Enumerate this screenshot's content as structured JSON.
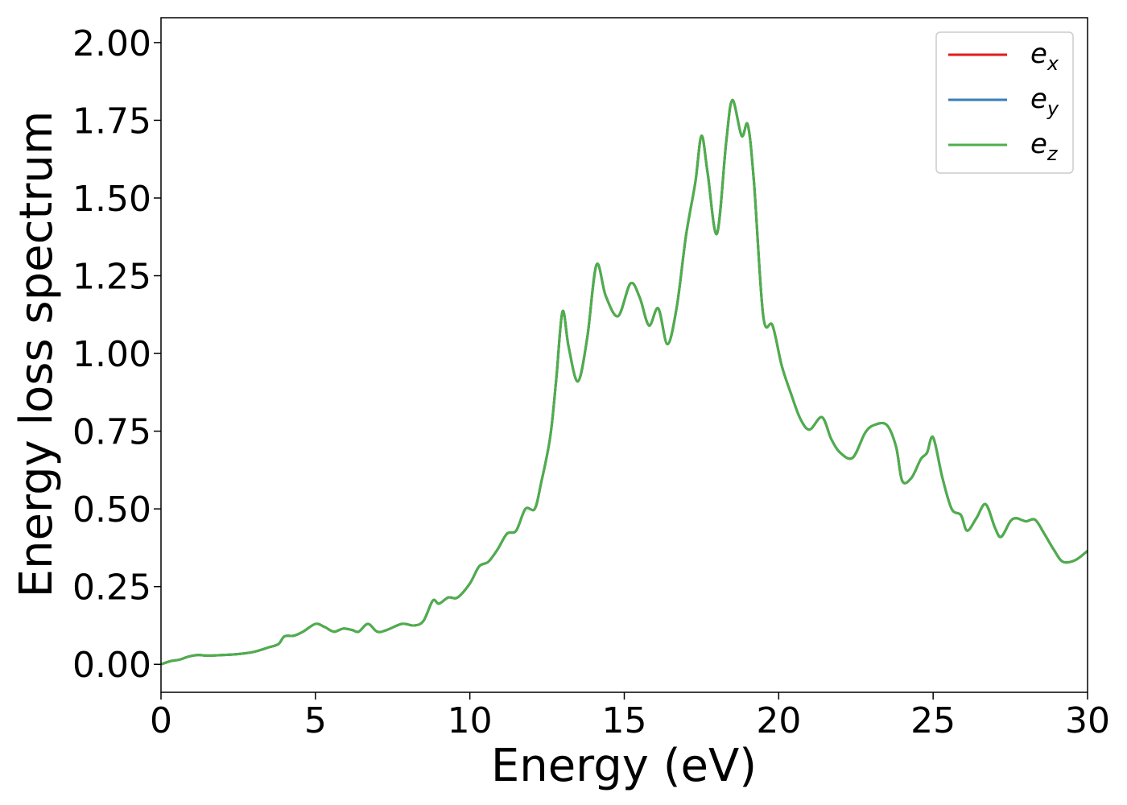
{
  "chart_data": {
    "type": "line",
    "title": "",
    "xlabel": "Energy (eV)",
    "ylabel": "Energy loss spectrum",
    "xlim": [
      0,
      30
    ],
    "ylim": [
      -0.09,
      2.08
    ],
    "xticks": [
      0,
      5,
      10,
      15,
      20,
      25,
      30
    ],
    "xtick_labels": [
      "0",
      "5",
      "10",
      "15",
      "20",
      "25",
      "30"
    ],
    "yticks": [
      0.0,
      0.25,
      0.5,
      0.75,
      1.0,
      1.25,
      1.5,
      1.75,
      2.0
    ],
    "ytick_labels": [
      "0.00",
      "0.25",
      "0.50",
      "0.75",
      "1.00",
      "1.25",
      "1.50",
      "1.75",
      "2.00"
    ],
    "grid": false,
    "legend_position": "top-right",
    "x": [
      0,
      0.3,
      0.6,
      0.9,
      1.2,
      1.5,
      2.0,
      2.5,
      3.0,
      3.5,
      3.8,
      4.0,
      4.3,
      4.6,
      5.0,
      5.3,
      5.6,
      5.9,
      6.2,
      6.4,
      6.7,
      7.0,
      7.3,
      7.8,
      8.2,
      8.5,
      8.8,
      9.0,
      9.3,
      9.6,
      10.0,
      10.3,
      10.6,
      10.9,
      11.2,
      11.5,
      11.8,
      12.1,
      12.3,
      12.6,
      12.8,
      13.0,
      13.2,
      13.5,
      13.8,
      14.1,
      14.4,
      14.8,
      15.2,
      15.5,
      15.8,
      16.1,
      16.4,
      16.7,
      17.0,
      17.3,
      17.5,
      17.7,
      18.0,
      18.3,
      18.5,
      18.8,
      19.0,
      19.2,
      19.5,
      19.8,
      20.1,
      20.4,
      20.7,
      21.0,
      21.4,
      21.7,
      22.0,
      22.4,
      22.8,
      23.1,
      23.5,
      23.8,
      24.0,
      24.3,
      24.6,
      24.8,
      25.0,
      25.3,
      25.6,
      25.9,
      26.1,
      26.4,
      26.7,
      27.0,
      27.2,
      27.5,
      27.7,
      28.0,
      28.3,
      28.6,
      28.9,
      29.2,
      29.6,
      30.0
    ],
    "series": [
      {
        "name": "e_x",
        "color": "#e41a1c",
        "values": [
          0.0,
          0.01,
          0.015,
          0.025,
          0.03,
          0.028,
          0.03,
          0.033,
          0.04,
          0.055,
          0.065,
          0.09,
          0.092,
          0.105,
          0.13,
          0.12,
          0.105,
          0.115,
          0.11,
          0.105,
          0.13,
          0.105,
          0.11,
          0.13,
          0.125,
          0.14,
          0.205,
          0.195,
          0.215,
          0.215,
          0.26,
          0.315,
          0.33,
          0.37,
          0.42,
          0.43,
          0.5,
          0.5,
          0.58,
          0.73,
          0.92,
          1.135,
          1.02,
          0.91,
          1.05,
          1.285,
          1.185,
          1.12,
          1.225,
          1.18,
          1.09,
          1.145,
          1.03,
          1.15,
          1.38,
          1.55,
          1.7,
          1.58,
          1.385,
          1.68,
          1.815,
          1.7,
          1.735,
          1.55,
          1.12,
          1.09,
          0.96,
          0.87,
          0.79,
          0.755,
          0.795,
          0.725,
          0.68,
          0.665,
          0.745,
          0.77,
          0.77,
          0.7,
          0.59,
          0.6,
          0.66,
          0.68,
          0.73,
          0.6,
          0.5,
          0.48,
          0.43,
          0.47,
          0.515,
          0.44,
          0.41,
          0.46,
          0.47,
          0.46,
          0.465,
          0.42,
          0.37,
          0.33,
          0.335,
          0.365
        ]
      },
      {
        "name": "e_y",
        "color": "#377eb8",
        "values": [
          0.0,
          0.01,
          0.015,
          0.025,
          0.03,
          0.028,
          0.03,
          0.033,
          0.04,
          0.055,
          0.065,
          0.09,
          0.092,
          0.105,
          0.13,
          0.12,
          0.105,
          0.115,
          0.11,
          0.105,
          0.13,
          0.105,
          0.11,
          0.13,
          0.125,
          0.14,
          0.205,
          0.195,
          0.215,
          0.215,
          0.26,
          0.315,
          0.33,
          0.37,
          0.42,
          0.43,
          0.5,
          0.5,
          0.58,
          0.73,
          0.92,
          1.135,
          1.02,
          0.91,
          1.05,
          1.285,
          1.185,
          1.12,
          1.225,
          1.18,
          1.09,
          1.145,
          1.03,
          1.15,
          1.38,
          1.55,
          1.7,
          1.58,
          1.385,
          1.68,
          1.815,
          1.7,
          1.735,
          1.55,
          1.12,
          1.09,
          0.96,
          0.87,
          0.79,
          0.755,
          0.795,
          0.725,
          0.68,
          0.665,
          0.745,
          0.77,
          0.77,
          0.7,
          0.59,
          0.6,
          0.66,
          0.68,
          0.73,
          0.6,
          0.5,
          0.48,
          0.43,
          0.47,
          0.515,
          0.44,
          0.41,
          0.46,
          0.47,
          0.46,
          0.465,
          0.42,
          0.37,
          0.33,
          0.335,
          0.365
        ]
      },
      {
        "name": "e_z",
        "color": "#4daf4a",
        "values": [
          0.0,
          0.01,
          0.015,
          0.025,
          0.03,
          0.028,
          0.03,
          0.033,
          0.04,
          0.055,
          0.065,
          0.09,
          0.092,
          0.105,
          0.13,
          0.12,
          0.105,
          0.115,
          0.11,
          0.105,
          0.13,
          0.105,
          0.11,
          0.13,
          0.125,
          0.14,
          0.205,
          0.195,
          0.215,
          0.215,
          0.26,
          0.315,
          0.33,
          0.37,
          0.42,
          0.43,
          0.5,
          0.5,
          0.58,
          0.73,
          0.92,
          1.135,
          1.02,
          0.91,
          1.05,
          1.285,
          1.185,
          1.12,
          1.225,
          1.18,
          1.09,
          1.145,
          1.03,
          1.15,
          1.38,
          1.55,
          1.7,
          1.58,
          1.385,
          1.68,
          1.815,
          1.7,
          1.735,
          1.55,
          1.12,
          1.09,
          0.96,
          0.87,
          0.79,
          0.755,
          0.795,
          0.725,
          0.68,
          0.665,
          0.745,
          0.77,
          0.77,
          0.7,
          0.59,
          0.6,
          0.66,
          0.68,
          0.73,
          0.6,
          0.5,
          0.48,
          0.43,
          0.47,
          0.515,
          0.44,
          0.41,
          0.46,
          0.47,
          0.46,
          0.465,
          0.42,
          0.37,
          0.33,
          0.335,
          0.365
        ]
      }
    ],
    "legend": [
      {
        "base": "e",
        "sub": "x",
        "color": "#e41a1c"
      },
      {
        "base": "e",
        "sub": "y",
        "color": "#377eb8"
      },
      {
        "base": "e",
        "sub": "z",
        "color": "#4daf4a"
      }
    ]
  }
}
